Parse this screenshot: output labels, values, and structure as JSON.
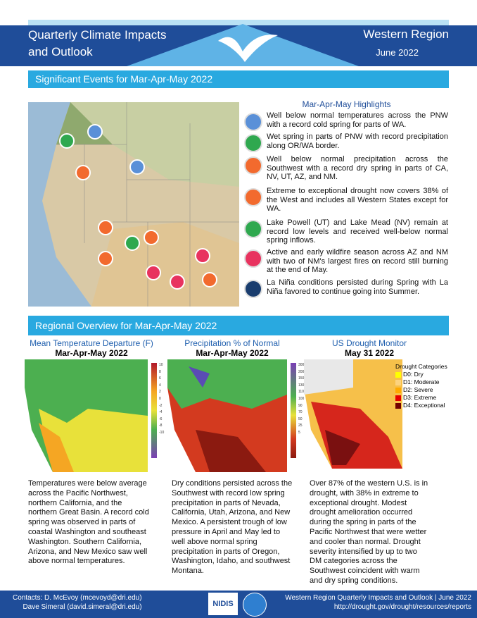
{
  "header": {
    "title_line1": "Quarterly Climate Impacts",
    "title_line2": "and Outlook",
    "region": "Western Region",
    "date": "June 2022"
  },
  "significant_events": {
    "title": "Significant Events for Mar-Apr-May 2022",
    "highlights_title": "Mar-Apr-May Highlights",
    "highlights": [
      "Well below normal temperatures across the PNW with a record cold spring for parts of WA.",
      "Wet spring in parts of PNW with record precipitation along OR/WA border.",
      "Well below normal precipitation across the Southwest with a record dry spring in parts of CA, NV, UT, AZ, and NM.",
      "Extreme to exceptional drought now covers 38% of the West and includes all Western States except for WA.",
      "Lake Powell (UT) and Lake Mead (NV) remain at record low levels and received well-below normal spring inflows.",
      "Active and early wildfire season across AZ and NM with two of NM's largest fires on record still burning at the end of May.",
      "La Niña conditions persisted during Spring with La Niña favored to continue going into Summer."
    ]
  },
  "overview": {
    "title": "Regional Overview for Mar-Apr-May 2022",
    "panels": [
      {
        "title": "Mean Temperature Departure (F)",
        "subtitle": "Mar-Apr-May 2022",
        "scale": [
          "10",
          "8",
          "6",
          "4",
          "2",
          "0",
          "-2",
          "-4",
          "-6",
          "-8",
          "-10"
        ],
        "text": "Temperatures were below average across the Pacific Northwest, northern California, and the northern Great Basin. A record cold spring was observed in parts of coastal Washington and southeast Washington. Southern California, Arizona, and New Mexico saw well above normal temperatures."
      },
      {
        "title": "Precipitation % of Normal",
        "subtitle": "Mar-Apr-May 2022",
        "scale": [
          "300",
          "200",
          "150",
          "130",
          "110",
          "100",
          "90",
          "70",
          "50",
          "25",
          "5"
        ],
        "text": "Dry conditions persisted across the Southwest with record low spring precipitation in parts of Nevada, California, Utah, Arizona, and New Mexico. A persistent trough of low pressure in April and May led to well above normal spring precipitation in parts of Oregon, Washington, Idaho, and southwest Montana."
      },
      {
        "title": "US Drought Monitor",
        "subtitle": "May 31 2022",
        "legend_title": "Drought Categories",
        "legend": [
          "D0: Dry",
          "D1: Moderate",
          "D2: Severe",
          "D3: Extreme",
          "D4: Exceptional"
        ],
        "text": "Over 87% of the western U.S. is in drought, with 38% in extreme to exceptional drought. Modest drought amelioration occurred during the spring in parts of the Pacific Northwest that were wetter and cooler than normal. Drought severity intensified by up to two DM categories across the Southwest coincident with warm and dry spring conditions."
      }
    ]
  },
  "footer": {
    "contact1": "Contacts: D. McEvoy (mcevoyd@dri.edu)",
    "contact2": "Dave Simeral (david.simeral@dri.edu)",
    "logo": "NIDIS",
    "right1": "Western Region Quarterly Impacts and Outlook | June 2022",
    "right2": "http://drought.gov/drought/resources/reports"
  }
}
